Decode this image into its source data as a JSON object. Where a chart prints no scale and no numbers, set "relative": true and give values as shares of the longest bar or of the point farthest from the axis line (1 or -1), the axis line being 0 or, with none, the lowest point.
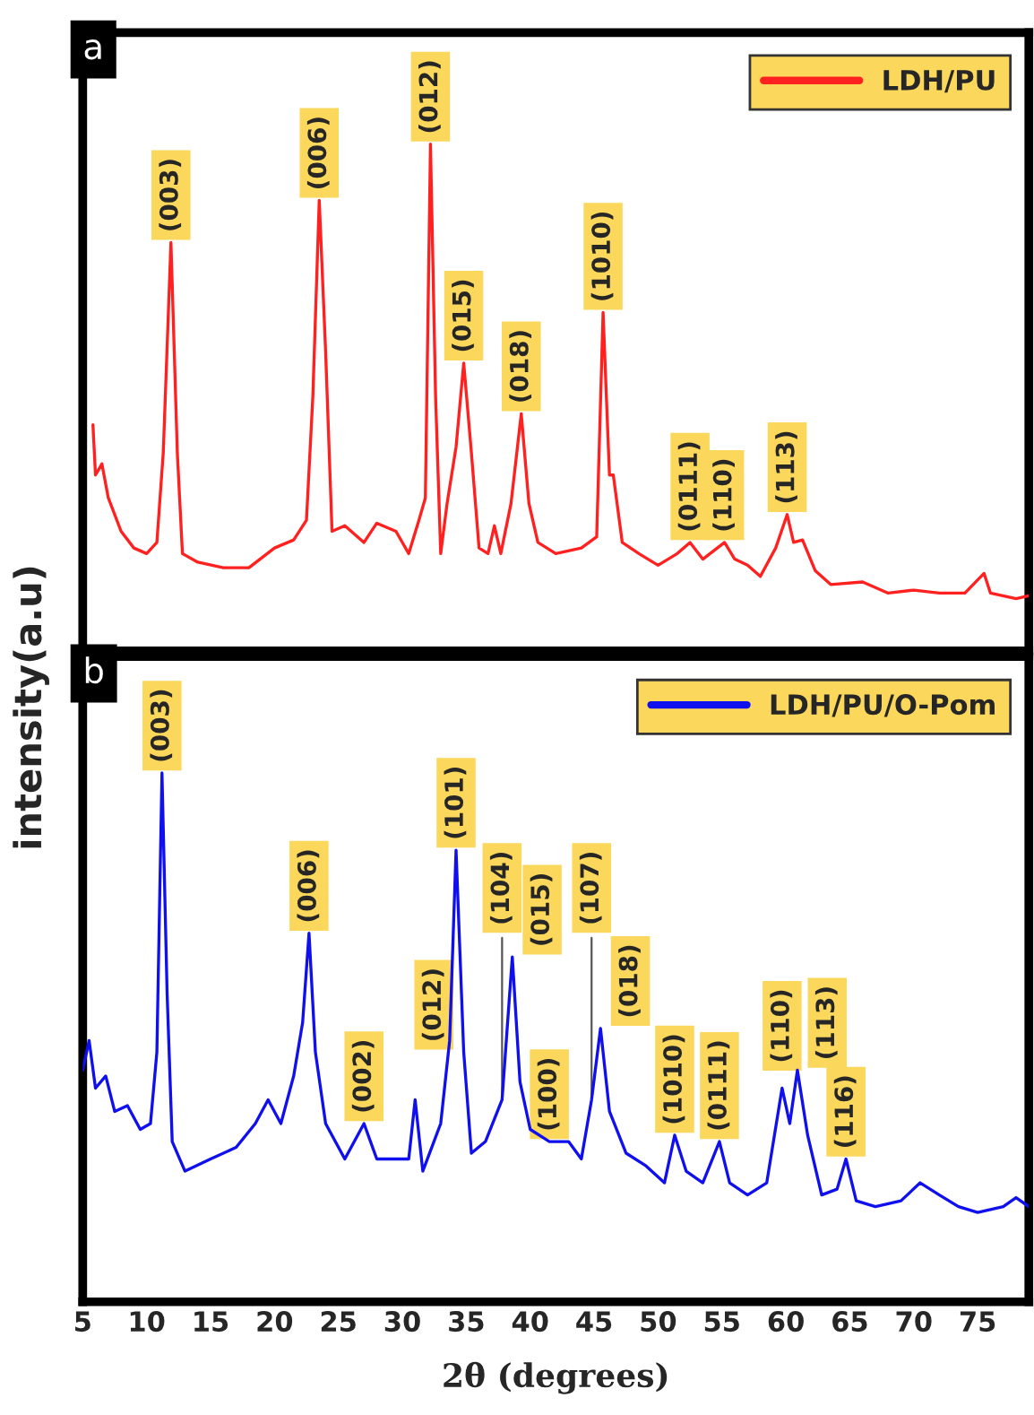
{
  "chart_data": [
    {
      "type": "line",
      "relative": true,
      "ylabel": "intensity(a.u)",
      "xlim": [
        5,
        79
      ],
      "tick_labels": false,
      "legend": "top right",
      "annotations": [
        "a",
        {
          "text": "(003)",
          "x": 11.9,
          "y": 0.806
        },
        {
          "text": "(006)",
          "x": 23.5,
          "y": 0.889
        },
        {
          "text": "(012)",
          "x": 32.2,
          "y": 1.0
        },
        {
          "text": "(015)",
          "x": 34.8,
          "y": 0.568
        },
        {
          "text": "(018)",
          "x": 39.3,
          "y": 0.468
        },
        {
          "text": "(1010)",
          "x": 45.7,
          "y": 0.668
        },
        {
          "text": "(0111)",
          "x": 52.5,
          "y": 0.214
        },
        {
          "text": "(110)",
          "x": 55.2,
          "y": 0.214
        },
        {
          "text": "(113)",
          "x": 60.1,
          "y": 0.269
        }
      ],
      "series": [
        {
          "name": "LDH/PU",
          "color": "#ff2020",
          "x": [
            5.8,
            6.0,
            6.5,
            7.0,
            8.0,
            9.0,
            10.0,
            10.8,
            11.3,
            11.9,
            12.4,
            12.8,
            14,
            16,
            18,
            20,
            21.5,
            22.5,
            23.0,
            23.5,
            24.0,
            24.5,
            25.5,
            27,
            28,
            29.5,
            30.5,
            31.3,
            31.8,
            32.2,
            32.6,
            33.0,
            33.5,
            34.2,
            34.8,
            35.4,
            36.0,
            36.7,
            37.2,
            37.7,
            38.5,
            39.3,
            39.9,
            40.6,
            42,
            44,
            45.2,
            45.7,
            46.2,
            46.5,
            47.2,
            48.5,
            50,
            51.5,
            52.5,
            53.5,
            55.2,
            56,
            57,
            58,
            59.2,
            60.1,
            60.6,
            61.3,
            62.3,
            63.5,
            66,
            68,
            70,
            72,
            74,
            75.5,
            76,
            78,
            79
          ],
          "values": [
            0.446,
            0.347,
            0.369,
            0.302,
            0.236,
            0.203,
            0.192,
            0.214,
            0.391,
            0.806,
            0.391,
            0.192,
            0.175,
            0.164,
            0.164,
            0.203,
            0.219,
            0.258,
            0.502,
            0.889,
            0.59,
            0.236,
            0.247,
            0.214,
            0.252,
            0.236,
            0.192,
            0.258,
            0.302,
            1.0,
            0.502,
            0.192,
            0.291,
            0.402,
            0.568,
            0.391,
            0.203,
            0.192,
            0.247,
            0.192,
            0.291,
            0.468,
            0.291,
            0.214,
            0.192,
            0.203,
            0.225,
            0.668,
            0.347,
            0.347,
            0.214,
            0.192,
            0.169,
            0.192,
            0.214,
            0.181,
            0.214,
            0.181,
            0.169,
            0.147,
            0.203,
            0.269,
            0.214,
            0.219,
            0.158,
            0.131,
            0.136,
            0.114,
            0.12,
            0.114,
            0.114,
            0.153,
            0.114,
            0.103,
            0.109
          ]
        }
      ]
    },
    {
      "type": "line",
      "relative": true,
      "xlabel": "2θ (degrees)",
      "xlim": [
        5,
        79
      ],
      "xticks": [
        5,
        10,
        15,
        20,
        25,
        30,
        35,
        40,
        45,
        50,
        55,
        60,
        65,
        70,
        75
      ],
      "tick_labels": "x",
      "legend": "top right",
      "annotations": [
        "b",
        {
          "text": "(003)",
          "x": 11.2,
          "y": 1.0
        },
        {
          "text": "(006)",
          "x": 22.7,
          "y": 0.697
        },
        {
          "text": "(002)",
          "x": 27,
          "y": 0.337
        },
        {
          "text": "(101)",
          "x": 34.2,
          "y": 0.854
        },
        {
          "text": "(012)",
          "x": 34.8,
          "y": 0.472
        },
        {
          "text": "(104)",
          "x": 37.8,
          "y": 0.382
        },
        {
          "text": "(015)",
          "x": 38.6,
          "y": 0.652
        },
        {
          "text": "(100)",
          "x": 41.5,
          "y": 0.303
        },
        {
          "text": "(107)",
          "x": 44.8,
          "y": 0.382
        },
        {
          "text": "(018)",
          "x": 45.5,
          "y": 0.517
        },
        {
          "text": "(1010)",
          "x": 51.3,
          "y": 0.315
        },
        {
          "text": "(0111)",
          "x": 54.8,
          "y": 0.303
        },
        {
          "text": "(110)",
          "x": 59.7,
          "y": 0.404
        },
        {
          "text": "(113)",
          "x": 60.9,
          "y": 0.438
        },
        {
          "text": "(116)",
          "x": 64.7,
          "y": 0.27
        }
      ],
      "series": [
        {
          "name": "LDH/PU/O-Pom",
          "color": "#1010ee",
          "x": [
            5.0,
            5.5,
            6.0,
            6.8,
            7.5,
            8.5,
            9.5,
            10.3,
            10.8,
            11.2,
            11.6,
            12.0,
            13,
            15,
            17,
            18.5,
            19.5,
            20.5,
            21.5,
            22.2,
            22.7,
            23.2,
            24.0,
            25.5,
            27,
            28,
            29.5,
            30.5,
            31.0,
            31.6,
            33.0,
            33.7,
            34.2,
            34.8,
            35.4,
            36.5,
            37.8,
            38.6,
            39.2,
            40,
            41.5,
            43,
            44,
            44.8,
            45.5,
            46.2,
            47.5,
            49,
            50.5,
            51.3,
            52.2,
            53.5,
            54.8,
            55.6,
            57,
            58.5,
            59.7,
            60.3,
            60.9,
            61.7,
            62.8,
            64,
            64.7,
            65.5,
            67,
            69,
            70.5,
            72,
            73.5,
            75,
            77,
            78,
            79
          ],
          "values": [
            0.438,
            0.494,
            0.404,
            0.427,
            0.36,
            0.371,
            0.326,
            0.337,
            0.472,
            1.0,
            0.584,
            0.303,
            0.247,
            0.27,
            0.292,
            0.337,
            0.382,
            0.337,
            0.427,
            0.528,
            0.697,
            0.472,
            0.337,
            0.27,
            0.337,
            0.27,
            0.27,
            0.27,
            0.382,
            0.247,
            0.337,
            0.494,
            0.854,
            0.472,
            0.281,
            0.303,
            0.382,
            0.652,
            0.416,
            0.326,
            0.303,
            0.303,
            0.27,
            0.382,
            0.517,
            0.36,
            0.281,
            0.258,
            0.225,
            0.315,
            0.247,
            0.225,
            0.303,
            0.225,
            0.202,
            0.225,
            0.404,
            0.337,
            0.438,
            0.315,
            0.202,
            0.213,
            0.27,
            0.191,
            0.18,
            0.191,
            0.225,
            0.202,
            0.18,
            0.169,
            0.18,
            0.197,
            0.18
          ]
        }
      ]
    }
  ]
}
